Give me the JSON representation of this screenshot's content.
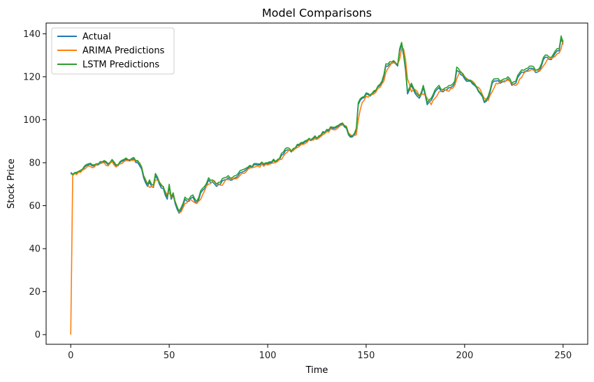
{
  "chart_data": {
    "type": "line",
    "title": "Model Comparisons",
    "xlabel": "Time",
    "ylabel": "Stock Price",
    "xlim": [
      -12.5,
      262.5
    ],
    "ylim": [
      -4.5,
      145
    ],
    "xticks": [
      0,
      50,
      100,
      150,
      200,
      250
    ],
    "yticks": [
      0,
      20,
      40,
      60,
      80,
      100,
      120,
      140
    ],
    "legend_position": "upper-left",
    "grid": false,
    "knots": {
      "Actual": [
        [
          0,
          75.5
        ],
        [
          3,
          75
        ],
        [
          5,
          76
        ],
        [
          7,
          78
        ],
        [
          9,
          79
        ],
        [
          12,
          78.5
        ],
        [
          15,
          80
        ],
        [
          17,
          80.5
        ],
        [
          19,
          79
        ],
        [
          21,
          81
        ],
        [
          23,
          78.5
        ],
        [
          25,
          80
        ],
        [
          27,
          81
        ],
        [
          29,
          81
        ],
        [
          31,
          81.5
        ],
        [
          34,
          80
        ],
        [
          36,
          77
        ],
        [
          37,
          73
        ],
        [
          39,
          69
        ],
        [
          40,
          71
        ],
        [
          42,
          68.5
        ],
        [
          43,
          74
        ],
        [
          45,
          70
        ],
        [
          47,
          68
        ],
        [
          49,
          63
        ],
        [
          50,
          69
        ],
        [
          51,
          63
        ],
        [
          52,
          65
        ],
        [
          53,
          61
        ],
        [
          55,
          56.5
        ],
        [
          56,
          58
        ],
        [
          57,
          60
        ],
        [
          58,
          63
        ],
        [
          60,
          62
        ],
        [
          62,
          64
        ],
        [
          64,
          61
        ],
        [
          66,
          66
        ],
        [
          68,
          68
        ],
        [
          70,
          72
        ],
        [
          72,
          71
        ],
        [
          74,
          69
        ],
        [
          76,
          70
        ],
        [
          78,
          72
        ],
        [
          80,
          73
        ],
        [
          82,
          72
        ],
        [
          85,
          74
        ],
        [
          88,
          76
        ],
        [
          90,
          77.5
        ],
        [
          95,
          79
        ],
        [
          100,
          79.5
        ],
        [
          105,
          81
        ],
        [
          108,
          84
        ],
        [
          110,
          86
        ],
        [
          112,
          85
        ],
        [
          115,
          88
        ],
        [
          118,
          89
        ],
        [
          120,
          90
        ],
        [
          123,
          91
        ],
        [
          126,
          92
        ],
        [
          128,
          94
        ],
        [
          130,
          95
        ],
        [
          133,
          96
        ],
        [
          136,
          97
        ],
        [
          138,
          98
        ],
        [
          140,
          96
        ],
        [
          141,
          93
        ],
        [
          143,
          92
        ],
        [
          145,
          95
        ],
        [
          146,
          107
        ],
        [
          148,
          110
        ],
        [
          150,
          112
        ],
        [
          152,
          111
        ],
        [
          154,
          113
        ],
        [
          157,
          116
        ],
        [
          159,
          120
        ],
        [
          160,
          125
        ],
        [
          162,
          126
        ],
        [
          164,
          127
        ],
        [
          166,
          125
        ],
        [
          167,
          132
        ],
        [
          168,
          135
        ],
        [
          169,
          130
        ],
        [
          170,
          123
        ],
        [
          171,
          112
        ],
        [
          173,
          116
        ],
        [
          175,
          112
        ],
        [
          177,
          110
        ],
        [
          179,
          115
        ],
        [
          181,
          107
        ],
        [
          183,
          109
        ],
        [
          185,
          113
        ],
        [
          187,
          115
        ],
        [
          189,
          113
        ],
        [
          191,
          114
        ],
        [
          193,
          115
        ],
        [
          195,
          117
        ],
        [
          196,
          123
        ],
        [
          198,
          121
        ],
        [
          200,
          119
        ],
        [
          202,
          118
        ],
        [
          205,
          116
        ],
        [
          208,
          112
        ],
        [
          210,
          108
        ],
        [
          212,
          110
        ],
        [
          214,
          117
        ],
        [
          216,
          118
        ],
        [
          218,
          117
        ],
        [
          220,
          118
        ],
        [
          222,
          119
        ],
        [
          224,
          116
        ],
        [
          226,
          117
        ],
        [
          228,
          121
        ],
        [
          230,
          122
        ],
        [
          232,
          123
        ],
        [
          234,
          124
        ],
        [
          236,
          122
        ],
        [
          238,
          123
        ],
        [
          240,
          128
        ],
        [
          242,
          129
        ],
        [
          244,
          128
        ],
        [
          246,
          131
        ],
        [
          248,
          132
        ],
        [
          249,
          138
        ],
        [
          250,
          135
        ]
      ],
      "ARIMA Predictions": [
        [
          0,
          0
        ],
        [
          1,
          74
        ],
        [
          3,
          74.5
        ],
        [
          5,
          75.5
        ],
        [
          7,
          77
        ],
        [
          9,
          78.5
        ],
        [
          12,
          78
        ],
        [
          15,
          79.5
        ],
        [
          17,
          80
        ],
        [
          19,
          78.5
        ],
        [
          21,
          80.5
        ],
        [
          23,
          78
        ],
        [
          25,
          79.5
        ],
        [
          27,
          80.5
        ],
        [
          29,
          81
        ],
        [
          31,
          81
        ],
        [
          34,
          80.5
        ],
        [
          36,
          78
        ],
        [
          37,
          74
        ],
        [
          39,
          70
        ],
        [
          40,
          68.5
        ],
        [
          42,
          69
        ],
        [
          43,
          72
        ],
        [
          45,
          71
        ],
        [
          47,
          68.5
        ],
        [
          49,
          65
        ],
        [
          50,
          66
        ],
        [
          51,
          64
        ],
        [
          52,
          64
        ],
        [
          53,
          62
        ],
        [
          55,
          57
        ],
        [
          56,
          57
        ],
        [
          57,
          59
        ],
        [
          58,
          61
        ],
        [
          60,
          63
        ],
        [
          62,
          62
        ],
        [
          64,
          61
        ],
        [
          66,
          63
        ],
        [
          68,
          67
        ],
        [
          70,
          70
        ],
        [
          72,
          71.5
        ],
        [
          74,
          70
        ],
        [
          76,
          69.5
        ],
        [
          78,
          71
        ],
        [
          80,
          72
        ],
        [
          82,
          72.5
        ],
        [
          85,
          73
        ],
        [
          88,
          75
        ],
        [
          90,
          77
        ],
        [
          95,
          78.5
        ],
        [
          100,
          79
        ],
        [
          105,
          80.5
        ],
        [
          108,
          83
        ],
        [
          110,
          85
        ],
        [
          112,
          85.5
        ],
        [
          115,
          87
        ],
        [
          118,
          88.5
        ],
        [
          120,
          89.5
        ],
        [
          123,
          90.5
        ],
        [
          126,
          91.5
        ],
        [
          128,
          93
        ],
        [
          130,
          94.5
        ],
        [
          133,
          95.5
        ],
        [
          136,
          96.5
        ],
        [
          138,
          97.5
        ],
        [
          140,
          97
        ],
        [
          141,
          94
        ],
        [
          143,
          92.5
        ],
        [
          145,
          93
        ],
        [
          146,
          100
        ],
        [
          148,
          108
        ],
        [
          150,
          111
        ],
        [
          152,
          111.5
        ],
        [
          154,
          112
        ],
        [
          157,
          115
        ],
        [
          159,
          118
        ],
        [
          160,
          122
        ],
        [
          162,
          125
        ],
        [
          164,
          126.5
        ],
        [
          166,
          126
        ],
        [
          167,
          128
        ],
        [
          168,
          133
        ],
        [
          169,
          133
        ],
        [
          170,
          128
        ],
        [
          171,
          119
        ],
        [
          173,
          113
        ],
        [
          175,
          114
        ],
        [
          177,
          111
        ],
        [
          179,
          112
        ],
        [
          181,
          110
        ],
        [
          183,
          107
        ],
        [
          185,
          110
        ],
        [
          187,
          113
        ],
        [
          189,
          114
        ],
        [
          191,
          113.5
        ],
        [
          193,
          114.5
        ],
        [
          195,
          116
        ],
        [
          196,
          119
        ],
        [
          198,
          122.5
        ],
        [
          200,
          120
        ],
        [
          202,
          118.5
        ],
        [
          205,
          117
        ],
        [
          208,
          114
        ],
        [
          210,
          110
        ],
        [
          212,
          109
        ],
        [
          214,
          113
        ],
        [
          216,
          117
        ],
        [
          218,
          117.5
        ],
        [
          220,
          117.5
        ],
        [
          222,
          118.5
        ],
        [
          224,
          117
        ],
        [
          226,
          116
        ],
        [
          228,
          119
        ],
        [
          230,
          121.5
        ],
        [
          232,
          122.5
        ],
        [
          234,
          123.5
        ],
        [
          236,
          123
        ],
        [
          238,
          122.5
        ],
        [
          240,
          125
        ],
        [
          242,
          128
        ],
        [
          244,
          128.5
        ],
        [
          246,
          129.5
        ],
        [
          248,
          131
        ],
        [
          249,
          133
        ],
        [
          250,
          137
        ]
      ],
      "LSTM Predictions": [
        [
          0,
          75
        ],
        [
          3,
          75.5
        ],
        [
          5,
          76.5
        ],
        [
          7,
          78.5
        ],
        [
          9,
          79.5
        ],
        [
          12,
          79
        ],
        [
          15,
          80.5
        ],
        [
          17,
          81
        ],
        [
          19,
          79.5
        ],
        [
          21,
          81.5
        ],
        [
          23,
          79
        ],
        [
          25,
          80.5
        ],
        [
          27,
          81.5
        ],
        [
          29,
          81.5
        ],
        [
          31,
          82
        ],
        [
          34,
          81
        ],
        [
          36,
          78
        ],
        [
          37,
          74
        ],
        [
          39,
          70
        ],
        [
          40,
          72
        ],
        [
          42,
          69.5
        ],
        [
          43,
          75
        ],
        [
          45,
          71
        ],
        [
          47,
          69
        ],
        [
          49,
          64
        ],
        [
          50,
          70
        ],
        [
          51,
          64
        ],
        [
          52,
          66
        ],
        [
          53,
          62
        ],
        [
          55,
          57.5
        ],
        [
          56,
          59
        ],
        [
          57,
          61
        ],
        [
          58,
          64
        ],
        [
          60,
          63
        ],
        [
          62,
          65
        ],
        [
          64,
          62
        ],
        [
          66,
          67
        ],
        [
          68,
          69
        ],
        [
          70,
          73
        ],
        [
          72,
          72
        ],
        [
          74,
          70
        ],
        [
          76,
          71
        ],
        [
          78,
          73
        ],
        [
          80,
          74
        ],
        [
          82,
          73
        ],
        [
          85,
          75
        ],
        [
          88,
          77
        ],
        [
          90,
          78
        ],
        [
          95,
          79.5
        ],
        [
          100,
          80
        ],
        [
          105,
          81.5
        ],
        [
          108,
          85
        ],
        [
          110,
          87
        ],
        [
          112,
          85.5
        ],
        [
          115,
          88.5
        ],
        [
          118,
          89.5
        ],
        [
          120,
          90.5
        ],
        [
          123,
          91.5
        ],
        [
          126,
          92.5
        ],
        [
          128,
          94.5
        ],
        [
          130,
          95.5
        ],
        [
          133,
          96.5
        ],
        [
          136,
          97.5
        ],
        [
          138,
          98.5
        ],
        [
          140,
          96.5
        ],
        [
          141,
          93.5
        ],
        [
          143,
          92.5
        ],
        [
          145,
          96
        ],
        [
          146,
          108
        ],
        [
          148,
          110.5
        ],
        [
          150,
          112.5
        ],
        [
          152,
          111.5
        ],
        [
          154,
          113.5
        ],
        [
          157,
          116.5
        ],
        [
          159,
          121
        ],
        [
          160,
          126
        ],
        [
          162,
          127
        ],
        [
          164,
          127.5
        ],
        [
          166,
          125.5
        ],
        [
          167,
          133
        ],
        [
          168,
          136
        ],
        [
          169,
          131
        ],
        [
          170,
          124
        ],
        [
          171,
          113
        ],
        [
          173,
          117
        ],
        [
          175,
          113
        ],
        [
          177,
          111
        ],
        [
          179,
          116
        ],
        [
          181,
          108
        ],
        [
          183,
          110
        ],
        [
          185,
          114
        ],
        [
          187,
          116
        ],
        [
          189,
          114
        ],
        [
          191,
          115
        ],
        [
          193,
          116
        ],
        [
          195,
          118
        ],
        [
          196,
          124.5
        ],
        [
          198,
          122
        ],
        [
          200,
          120
        ],
        [
          202,
          118.5
        ],
        [
          205,
          116.5
        ],
        [
          208,
          112.5
        ],
        [
          210,
          108.5
        ],
        [
          212,
          111
        ],
        [
          214,
          118
        ],
        [
          216,
          119
        ],
        [
          218,
          118
        ],
        [
          220,
          119
        ],
        [
          222,
          120
        ],
        [
          224,
          117
        ],
        [
          226,
          118
        ],
        [
          228,
          122
        ],
        [
          230,
          123
        ],
        [
          232,
          124
        ],
        [
          234,
          125
        ],
        [
          236,
          123
        ],
        [
          238,
          124
        ],
        [
          240,
          129
        ],
        [
          242,
          130
        ],
        [
          244,
          129
        ],
        [
          246,
          132
        ],
        [
          248,
          133
        ],
        [
          249,
          139
        ],
        [
          250,
          136
        ]
      ]
    },
    "series": [
      {
        "name": "Actual",
        "color": "#1f77b4"
      },
      {
        "name": "ARIMA Predictions",
        "color": "#ff7f0e"
      },
      {
        "name": "LSTM Predictions",
        "color": "#2ca02c"
      }
    ]
  }
}
